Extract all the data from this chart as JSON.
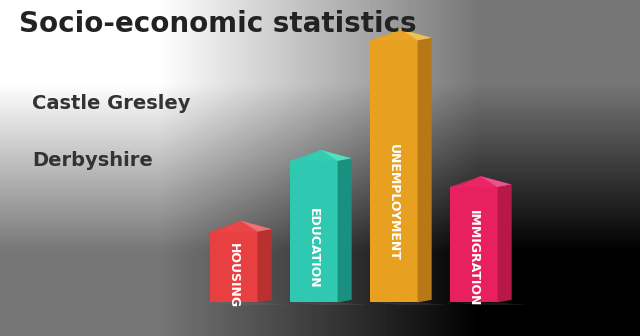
{
  "title": "Socio-economic statistics",
  "subtitle1": "Castle Gresley",
  "subtitle2": "Derbyshire",
  "categories": [
    "HOUSING",
    "EDUCATION",
    "UNEMPLOYMENT",
    "IMMIGRATION"
  ],
  "values": [
    0.27,
    0.54,
    1.0,
    0.44
  ],
  "front_colors": [
    "#e84040",
    "#2ec9b0",
    "#e8a020",
    "#e82060"
  ],
  "side_colors": [
    "#b83030",
    "#1a9080",
    "#b87818",
    "#b81848"
  ],
  "top_colors": [
    "#f07070",
    "#50dfc0",
    "#f0c050",
    "#f05090"
  ],
  "title_fontsize": 20,
  "subtitle_fontsize": 14,
  "label_fontsize": 9,
  "bg_color_tl": "#e8e8e8",
  "bg_color_br": "#c8c8c8"
}
